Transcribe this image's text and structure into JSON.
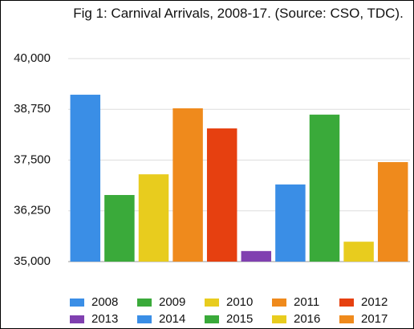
{
  "chart_data": {
    "type": "bar",
    "title": "Fig 1: Carnival Arrivals, 2008-17. (Source: CSO, TDC).",
    "ylim": [
      35000,
      40000
    ],
    "yticks": [
      {
        "value": 35000,
        "label": "35,000"
      },
      {
        "value": 36250,
        "label": "36,250"
      },
      {
        "value": 37500,
        "label": "37,500"
      },
      {
        "value": 38750,
        "label": "38,750"
      },
      {
        "value": 40000,
        "label": "40,000"
      }
    ],
    "grid": true,
    "legend": "bottom",
    "series": [
      {
        "name": "2008",
        "color": "#3a8ee6",
        "values": [
          39110
        ]
      },
      {
        "name": "2009",
        "color": "#3aaa3a",
        "values": [
          36640
        ]
      },
      {
        "name": "2010",
        "color": "#e8cc1e",
        "values": [
          37150
        ]
      },
      {
        "name": "2011",
        "color": "#ef8a1c",
        "values": [
          38775
        ]
      },
      {
        "name": "2012",
        "color": "#e64010",
        "values": [
          38280
        ]
      },
      {
        "name": "2013",
        "color": "#8040b0",
        "values": [
          35260
        ]
      },
      {
        "name": "2014",
        "color": "#3a8ee6",
        "values": [
          36900
        ]
      },
      {
        "name": "2015",
        "color": "#3aaa3a",
        "values": [
          38620
        ]
      },
      {
        "name": "2016",
        "color": "#e8cc1e",
        "values": [
          35490
        ]
      },
      {
        "name": "2017",
        "color": "#ef8a1c",
        "values": [
          37450
        ]
      }
    ]
  }
}
